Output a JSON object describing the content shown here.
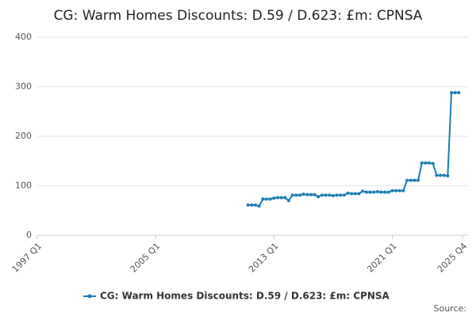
{
  "chart_data": {
    "type": "line",
    "title": "CG: Warm Homes Discounts: D.59 / D.623: £m: CPNSA",
    "categories": [
      "1997 Q1",
      null,
      null,
      null,
      null,
      null,
      null,
      null,
      null,
      null,
      null,
      null,
      null,
      null,
      null,
      null,
      null,
      null,
      null,
      null,
      null,
      null,
      null,
      null,
      null,
      null,
      null,
      null,
      null,
      null,
      null,
      null,
      "2005 Q1",
      null,
      null,
      null,
      null,
      null,
      null,
      null,
      null,
      null,
      null,
      null,
      null,
      null,
      null,
      null,
      null,
      null,
      null,
      null,
      null,
      null,
      null,
      null,
      null,
      null,
      null,
      null,
      null,
      null,
      null,
      null,
      "2013 Q1",
      null,
      null,
      null,
      null,
      null,
      null,
      null,
      null,
      null,
      null,
      null,
      null,
      null,
      null,
      null,
      null,
      null,
      null,
      null,
      null,
      null,
      null,
      null,
      null,
      null,
      null,
      null,
      null,
      null,
      null,
      null,
      "2021 Q1",
      null,
      null,
      null,
      null,
      null,
      null,
      null,
      null,
      null,
      null,
      null,
      null,
      null,
      null,
      null,
      null,
      null,
      null,
      "2025 Q4"
    ],
    "series": [
      {
        "name": "CG: Warm Homes Discounts: D.59 / D.623: £m: CPNSA",
        "color": "#1b7db8",
        "values": [
          null,
          null,
          null,
          null,
          null,
          null,
          null,
          null,
          null,
          null,
          null,
          null,
          null,
          null,
          null,
          null,
          null,
          null,
          null,
          null,
          null,
          null,
          null,
          null,
          null,
          null,
          null,
          null,
          null,
          null,
          null,
          null,
          null,
          null,
          null,
          null,
          null,
          null,
          null,
          null,
          null,
          null,
          null,
          null,
          null,
          null,
          null,
          null,
          null,
          null,
          null,
          null,
          null,
          null,
          null,
          null,
          null,
          61,
          61,
          61,
          59,
          73,
          73,
          73,
          75,
          76,
          76,
          76,
          70,
          81,
          81,
          81,
          83,
          82,
          82,
          82,
          78,
          81,
          81,
          81,
          80,
          81,
          81,
          81,
          85,
          84,
          84,
          84,
          89,
          87,
          87,
          87,
          88,
          87,
          87,
          87,
          90,
          90,
          90,
          90,
          111,
          111,
          111,
          111,
          146,
          146,
          146,
          145,
          121,
          121,
          121,
          120,
          288,
          288,
          288,
          null
        ]
      }
    ],
    "ylim": [
      0,
      400
    ],
    "yticks": [
      0,
      100,
      200,
      300,
      400
    ],
    "grid": true,
    "legend": "bottom",
    "source": "Source:"
  }
}
